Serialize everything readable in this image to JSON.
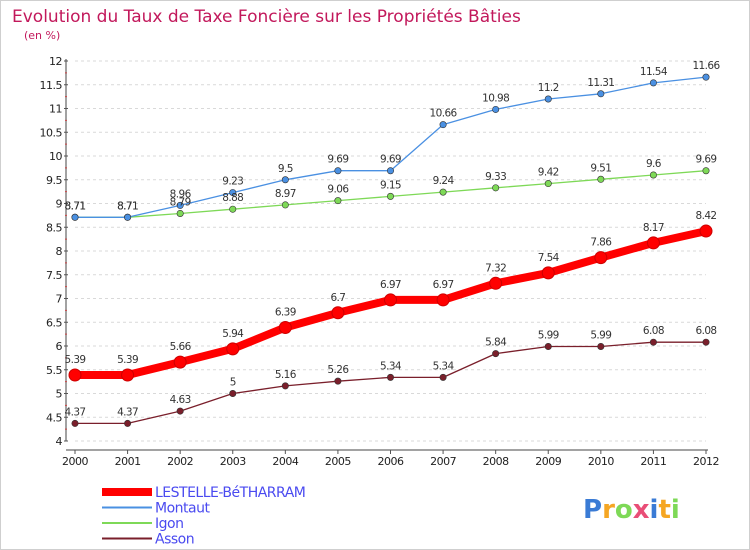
{
  "chart_data": {
    "type": "line",
    "title": "Evolution du Taux de Taxe Foncière sur les Propriétés Bâties",
    "subtitle": "(en %)",
    "xlabel": "",
    "ylabel": "",
    "x": [
      "2000",
      "2001",
      "2002",
      "2003",
      "2004",
      "2005",
      "2006",
      "2007",
      "2008",
      "2009",
      "2010",
      "2011",
      "2012"
    ],
    "ylim": [
      4,
      12
    ],
    "yticks": [
      "4",
      "4.5",
      "5",
      "5.5",
      "6",
      "6.5",
      "7",
      "7.5",
      "8",
      "8.5",
      "9",
      "9.5",
      "10",
      "10.5",
      "11",
      "11.5",
      "12"
    ],
    "grid": "horizontal dashed",
    "legend_position": "bottom-left",
    "series": [
      {
        "name": "LESTELLE-BéTHARRAM",
        "color": "#ff0000",
        "values": [
          5.39,
          5.39,
          5.66,
          5.94,
          6.39,
          6.7,
          6.97,
          6.97,
          7.32,
          7.54,
          7.86,
          8.17,
          8.42
        ],
        "labels": [
          "5.39",
          "5.39",
          "5.66",
          "5.94",
          "6.39",
          "6.7",
          "6.97",
          "6.97",
          "7.32",
          "7.54",
          "7.86",
          "8.17",
          "8.42"
        ]
      },
      {
        "name": "Montaut",
        "color": "#4a90e2",
        "values": [
          8.71,
          8.71,
          8.96,
          9.23,
          9.5,
          9.69,
          9.69,
          10.66,
          10.98,
          11.2,
          11.31,
          11.54,
          11.66
        ],
        "labels": [
          "8.71",
          "8.71",
          "8.96",
          "9.23",
          "9.5",
          "9.69",
          "9.69",
          "10.66",
          "10.98",
          "11.2",
          "11.31",
          "11.54",
          "11.66"
        ]
      },
      {
        "name": "Igon",
        "color": "#7ed957",
        "values": [
          8.71,
          8.71,
          8.79,
          8.88,
          8.97,
          9.06,
          9.15,
          9.24,
          9.33,
          9.42,
          9.51,
          9.6,
          9.69
        ],
        "labels": [
          "8.71",
          "8.71",
          "8.79",
          "8.88",
          "8.97",
          "9.06",
          "9.15",
          "9.24",
          "9.33",
          "9.42",
          "9.51",
          "9.6",
          "9.69"
        ]
      },
      {
        "name": "Asson",
        "color": "#7a1f2b",
        "values": [
          4.37,
          4.37,
          4.63,
          5,
          5.16,
          5.26,
          5.34,
          5.34,
          5.84,
          5.99,
          5.99,
          6.08,
          6.08
        ],
        "labels": [
          "4.37",
          "4.37",
          "4.63",
          "5",
          "5.16",
          "5.26",
          "5.34",
          "5.34",
          "5.84",
          "5.99",
          "5.99",
          "6.08",
          "6.08"
        ]
      }
    ]
  },
  "logo": {
    "text": "Proxiti",
    "colors": [
      "#3a7bd5",
      "#f5a623",
      "#7ed957",
      "#e94e77",
      "#3a7bd5",
      "#f5a623",
      "#7ed957"
    ]
  }
}
